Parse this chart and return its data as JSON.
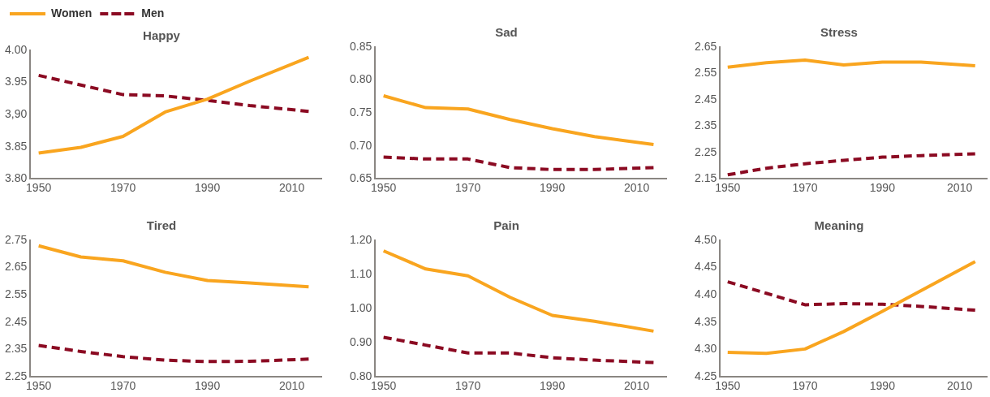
{
  "chart_data": [
    {
      "type": "line",
      "title": "Happy",
      "legend": "top left",
      "marker": "none",
      "x": [
        1950,
        1960,
        1970,
        1980,
        1990,
        2000,
        2014
      ],
      "xlim": [
        1948,
        2017
      ],
      "xticks": [
        1950,
        1970,
        1990,
        2010
      ],
      "ylim": [
        3.8,
        4.0
      ],
      "yticks": [
        {
          "value": 3.8,
          "label": "3.80"
        },
        {
          "value": 3.85,
          "label": "3.85"
        },
        {
          "value": 3.9,
          "label": "3,90"
        },
        {
          "value": 3.95,
          "label": "3.95"
        },
        {
          "value": 4.0,
          "label": "4.00"
        }
      ],
      "series": [
        {
          "name": "Women",
          "color": "#f9a51f",
          "line_style": "solid",
          "values": [
            3.84,
            3.849,
            3.866,
            3.904,
            3.924,
            3.952,
            3.989
          ]
        },
        {
          "name": "Men",
          "color": "#8b0a22",
          "line_style": "dashed",
          "values": [
            3.961,
            3.946,
            3.931,
            3.929,
            3.922,
            3.914,
            3.905
          ]
        }
      ]
    },
    {
      "type": "line",
      "title": "Sad",
      "marker": "none",
      "x": [
        1950,
        1960,
        1970,
        1980,
        1990,
        2000,
        2014
      ],
      "xlim": [
        1948,
        2017
      ],
      "xticks": [
        1950,
        1970,
        1990,
        2010
      ],
      "ylim": [
        0.65,
        0.85
      ],
      "yticks": [
        {
          "value": 0.65,
          "label": "0.65"
        },
        {
          "value": 0.7,
          "label": "0.70"
        },
        {
          "value": 0.75,
          "label": "0.75"
        },
        {
          "value": 0.8,
          "label": "0.80"
        },
        {
          "value": 0.85,
          "label": "0.85"
        }
      ],
      "series": [
        {
          "color": "#f9a51f",
          "line_style": "solid",
          "values": [
            0.776,
            0.758,
            0.756,
            0.74,
            0.726,
            0.714,
            0.702
          ]
        },
        {
          "color": "#8b0a22",
          "line_style": "dashed",
          "values": [
            0.683,
            0.68,
            0.68,
            0.667,
            0.664,
            0.664,
            0.667
          ]
        }
      ]
    },
    {
      "type": "line",
      "title": "Stress",
      "marker": "none",
      "x": [
        1950,
        1960,
        1970,
        1980,
        1990,
        2000,
        2014
      ],
      "xlim": [
        1948,
        2017
      ],
      "xticks": [
        1950,
        1970,
        1990,
        2010
      ],
      "ylim": [
        2.15,
        2.65
      ],
      "yticks": [
        2.15,
        2.25,
        2.35,
        2.45,
        2.55,
        2.65
      ],
      "series": [
        {
          "color": "#f9a51f",
          "line_style": "solid",
          "values": [
            2.574,
            2.591,
            2.601,
            2.582,
            2.593,
            2.593,
            2.579
          ]
        },
        {
          "color": "#8b0a22",
          "line_style": "dashed",
          "values": [
            2.165,
            2.19,
            2.207,
            2.22,
            2.232,
            2.238,
            2.245
          ]
        }
      ]
    },
    {
      "type": "line",
      "title": "Tired",
      "marker": "none",
      "x": [
        1950,
        1960,
        1970,
        1980,
        1990,
        2000,
        2014
      ],
      "xlim": [
        1948,
        2017
      ],
      "xticks": [
        1950,
        1970,
        1990,
        2010
      ],
      "ylim": [
        2.25,
        2.75
      ],
      "yticks": [
        2.25,
        2.35,
        2.45,
        2.55,
        2.65,
        2.75
      ],
      "series": [
        {
          "color": "#f9a51f",
          "line_style": "solid",
          "values": [
            2.73,
            2.689,
            2.675,
            2.633,
            2.603,
            2.594,
            2.58
          ]
        },
        {
          "color": "#8b0a22",
          "line_style": "dashed",
          "values": [
            2.365,
            2.343,
            2.324,
            2.311,
            2.306,
            2.307,
            2.315
          ]
        }
      ]
    },
    {
      "type": "line",
      "title": "Pain",
      "marker": "none",
      "x": [
        1950,
        1960,
        1970,
        1980,
        1990,
        2000,
        2014
      ],
      "xlim": [
        1948,
        2017
      ],
      "xticks": [
        1950,
        1970,
        1990,
        2010
      ],
      "ylim": [
        0.8,
        1.2
      ],
      "yticks": [
        {
          "value": 0.8,
          "label": "0.80"
        },
        {
          "value": 0.9,
          "label": "0.90"
        },
        {
          "value": 1.0,
          "label": "1.00"
        },
        {
          "value": 1.1,
          "label": "1.10"
        },
        {
          "value": 1.2,
          "label": "1.20"
        }
      ],
      "series": [
        {
          "color": "#f9a51f",
          "line_style": "solid",
          "values": [
            1.169,
            1.116,
            1.096,
            1.033,
            0.98,
            0.963,
            0.934
          ]
        },
        {
          "color": "#8b0a22",
          "line_style": "dashed",
          "values": [
            0.916,
            0.893,
            0.87,
            0.87,
            0.856,
            0.849,
            0.842
          ]
        }
      ]
    },
    {
      "type": "line",
      "title": "Meaning",
      "marker": "none",
      "x": [
        1950,
        1960,
        1970,
        1980,
        1990,
        2000,
        2014
      ],
      "xlim": [
        1948,
        2017
      ],
      "xticks": [
        1950,
        1970,
        1990,
        2010
      ],
      "ylim": [
        4.25,
        4.5
      ],
      "yticks": [
        {
          "value": 4.25,
          "label": "4.25"
        },
        {
          "value": 4.3,
          "label": "4.30"
        },
        {
          "value": 4.35,
          "label": "4.35"
        },
        {
          "value": 4.4,
          "label": "4.40"
        },
        {
          "value": 4.45,
          "label": "4.45"
        },
        {
          "value": 4.5,
          "label": "4.50"
        }
      ],
      "series": [
        {
          "color": "#f9a51f",
          "line_style": "solid",
          "values": [
            4.295,
            4.293,
            4.301,
            4.333,
            4.37,
            4.408,
            4.461
          ]
        },
        {
          "color": "#8b0a22",
          "line_style": "dashed",
          "values": [
            4.424,
            4.403,
            4.382,
            4.384,
            4.383,
            4.379,
            4.372
          ]
        }
      ]
    }
  ]
}
